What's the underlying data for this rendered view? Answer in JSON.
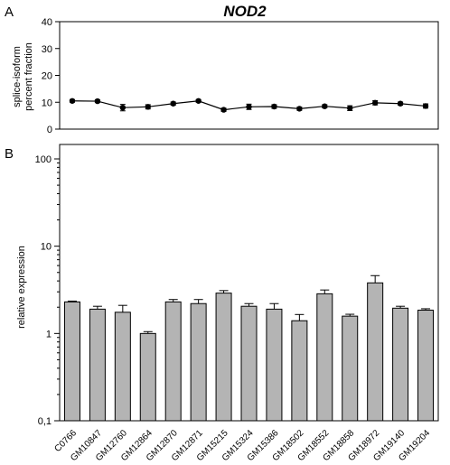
{
  "figure": {
    "title": "NOD2",
    "panel_a_label": "A",
    "panel_b_label": "B",
    "bar_color": "#b4b4b4",
    "line_color": "#000000"
  },
  "chart_data": [
    {
      "type": "line",
      "panel": "A",
      "title": "NOD2",
      "ylabel_line1": "splice-isoform",
      "ylabel_line2": "percent fraction",
      "ylim": [
        0,
        40
      ],
      "yticks": [
        "0",
        "10",
        "20",
        "30",
        "40"
      ],
      "grid": false,
      "x": [
        "C0766",
        "GM10847",
        "GM12760",
        "GM12864",
        "GM12870",
        "GM12871",
        "GM15215",
        "GM15324",
        "GM15386",
        "GM18502",
        "GM18552",
        "GM18858",
        "GM18972",
        "GM19140",
        "GM19204"
      ],
      "values": [
        10.5,
        10.4,
        8.0,
        8.3,
        9.5,
        10.5,
        7.2,
        8.3,
        8.4,
        7.6,
        8.5,
        7.8,
        9.8,
        9.5,
        8.6
      ],
      "errors": [
        0.5,
        0.5,
        1.2,
        0.8,
        0.6,
        0.5,
        0.6,
        1.0,
        0.7,
        0.6,
        0.6,
        0.9,
        0.8,
        0.6,
        0.8
      ]
    },
    {
      "type": "bar",
      "panel": "B",
      "ylabel": "relative expression",
      "yscale": "log",
      "ylim": [
        0.1,
        100
      ],
      "yticks": [
        "0,1",
        "1",
        "10",
        "100"
      ],
      "grid": false,
      "categories": [
        "C0766",
        "GM10847",
        "GM12760",
        "GM12864",
        "GM12870",
        "GM12871",
        "GM15215",
        "GM15324",
        "GM15386",
        "GM18502",
        "GM18552",
        "GM18858",
        "GM18972",
        "GM19140",
        "GM19204"
      ],
      "values": [
        2.3,
        1.9,
        1.75,
        1.0,
        2.3,
        2.2,
        2.9,
        2.05,
        1.9,
        1.4,
        2.85,
        1.58,
        3.8,
        1.95,
        1.85
      ],
      "errors": [
        0.05,
        0.15,
        0.35,
        0.05,
        0.15,
        0.25,
        0.2,
        0.15,
        0.3,
        0.25,
        0.3,
        0.08,
        0.8,
        0.1,
        0.07
      ]
    }
  ]
}
